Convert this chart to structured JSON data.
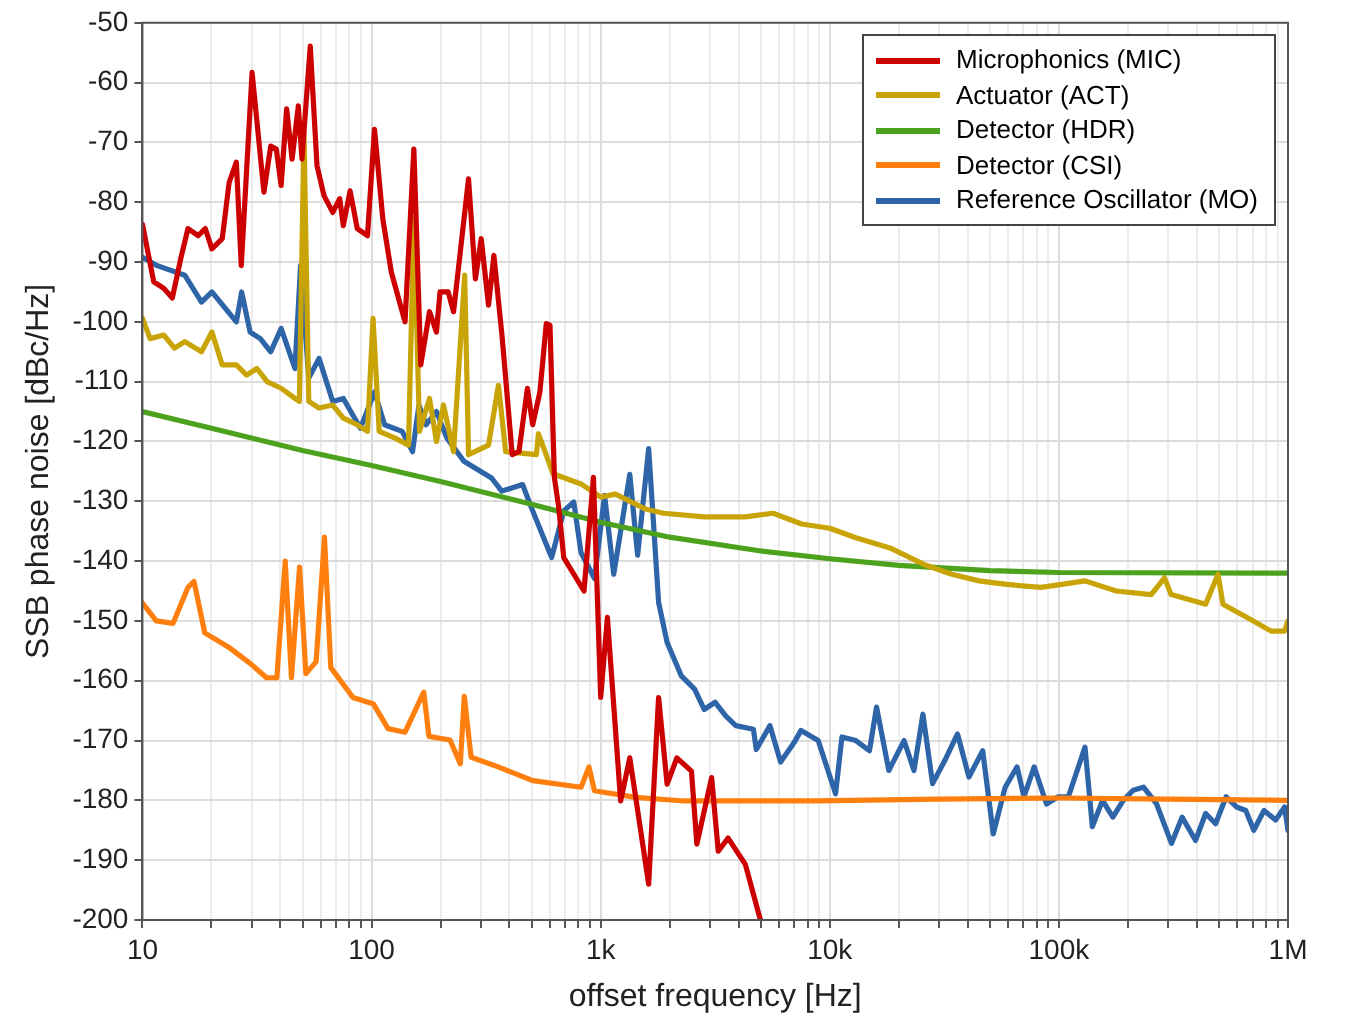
{
  "chart_data": {
    "type": "line",
    "xlabel": "offset frequency [Hz]",
    "ylabel": "SSB phase noise [dBc/Hz]",
    "log": "x",
    "grid": true,
    "legend": "top right",
    "marker": "none",
    "line_style": "solid",
    "xlim": [
      10,
      1000000
    ],
    "ylim": [
      -200,
      -50
    ],
    "xticks": [
      10,
      {
        "value": 20,
        "label": null
      },
      {
        "value": 30,
        "label": null
      },
      {
        "value": 40,
        "label": null
      },
      {
        "value": 50,
        "label": null
      },
      {
        "value": 60,
        "label": null
      },
      {
        "value": 70,
        "label": null
      },
      {
        "value": 80,
        "label": null
      },
      {
        "value": 90,
        "label": null
      },
      100,
      {
        "value": 200,
        "label": null
      },
      {
        "value": 300,
        "label": null
      },
      {
        "value": 400,
        "label": null
      },
      {
        "value": 500,
        "label": null
      },
      {
        "value": 600,
        "label": null
      },
      {
        "value": 700,
        "label": null
      },
      {
        "value": 800,
        "label": null
      },
      {
        "value": 900,
        "label": null
      },
      {
        "value": 1000,
        "label": "1k"
      },
      {
        "value": 2000,
        "label": null
      },
      {
        "value": 3000,
        "label": null
      },
      {
        "value": 4000,
        "label": null
      },
      {
        "value": 5000,
        "label": null
      },
      {
        "value": 6000,
        "label": null
      },
      {
        "value": 7000,
        "label": null
      },
      {
        "value": 8000,
        "label": null
      },
      {
        "value": 9000,
        "label": null
      },
      {
        "value": 10000,
        "label": "10k"
      },
      {
        "value": 20000,
        "label": null
      },
      {
        "value": 30000,
        "label": null
      },
      {
        "value": 40000,
        "label": null
      },
      {
        "value": 50000,
        "label": null
      },
      {
        "value": 60000,
        "label": null
      },
      {
        "value": 70000,
        "label": null
      },
      {
        "value": 80000,
        "label": null
      },
      {
        "value": 90000,
        "label": null
      },
      {
        "value": 100000,
        "label": "100k"
      },
      {
        "value": 200000,
        "label": null
      },
      {
        "value": 300000,
        "label": null
      },
      {
        "value": 400000,
        "label": null
      },
      {
        "value": 500000,
        "label": null
      },
      {
        "value": 600000,
        "label": null
      },
      {
        "value": 700000,
        "label": null
      },
      {
        "value": 800000,
        "label": null
      },
      {
        "value": 900000,
        "label": null
      },
      {
        "value": 1000000,
        "label": "1M"
      }
    ],
    "yticks": [
      -50,
      -60,
      -70,
      -80,
      -90,
      -100,
      -110,
      -120,
      -130,
      -140,
      -150,
      -160,
      -170,
      -180,
      -190,
      -200
    ],
    "series": [
      {
        "name": "Microphonics (MIC)",
        "color": "#cc0000",
        "x": [
          10,
          11.2,
          12.4,
          13.5,
          14.7,
          15.8,
          17.5,
          18.8,
          20.1,
          22.3,
          23.9,
          25.7,
          27,
          30.1,
          33.9,
          36.3,
          38.4,
          40.3,
          42.6,
          45,
          47.9,
          49.7,
          54,
          57.8,
          62,
          67.7,
          72.6,
          75.3,
          80.6,
          86.6,
          96,
          103,
          112,
          122,
          140,
          153,
          164,
          179,
          192,
          199,
          216,
          228,
          265,
          284,
          301,
          324,
          342,
          372,
          411,
          440,
          479,
          505,
          543,
          579,
          601,
          628,
          656,
          690,
          846,
          930,
          1000,
          1070,
          1222,
          1340,
          1620,
          1790,
          1950,
          2150,
          2490,
          2630,
          3050,
          3260,
          3600,
          4280,
          4980
        ],
        "values": [
          -83.7,
          -93.3,
          -94.4,
          -96,
          -89.4,
          -84.4,
          -85.6,
          -84.4,
          -87.8,
          -86.1,
          -76.7,
          -73.3,
          -90.6,
          -58.3,
          -78.3,
          -70.6,
          -71.1,
          -77.2,
          -64.4,
          -72.8,
          -63.9,
          -72.8,
          -53.9,
          -73.9,
          -78.9,
          -81.7,
          -79.4,
          -83.9,
          -78.1,
          -84.4,
          -85.6,
          -67.8,
          -82.8,
          -91.7,
          -100,
          -71.1,
          -107.2,
          -98.3,
          -101.7,
          -95,
          -95,
          -98.3,
          -76.1,
          -92.8,
          -86.1,
          -97.2,
          -88.9,
          -102.8,
          -122.2,
          -121.7,
          -111.1,
          -117.2,
          -111.7,
          -100.3,
          -100.6,
          -126,
          -131,
          -139.4,
          -145,
          -126,
          -162.8,
          -149.4,
          -180.1,
          -172.9,
          -194,
          -162.8,
          -177.3,
          -172.9,
          -175.1,
          -187.3,
          -176.2,
          -188.5,
          -186.3,
          -190.7,
          -200
        ]
      },
      {
        "name": "Actuator (ACT)",
        "color": "#c9a406",
        "x": [
          10,
          10.8,
          12.4,
          13.8,
          15.3,
          18.1,
          20.1,
          22.3,
          25.7,
          28.5,
          31.6,
          35,
          40.3,
          46.3,
          48.4,
          50.7,
          53.2,
          59,
          67.7,
          75.3,
          86.6,
          96,
          101.5,
          108,
          126,
          145,
          153,
          162,
          179,
          192,
          206,
          228,
          255,
          265,
          324,
          358,
          385,
          524,
          535,
          620,
          821,
          1000,
          1160,
          1570,
          1880,
          2830,
          4280,
          5660,
          7540,
          10000,
          13000,
          18300,
          25900,
          34100,
          44800,
          59100,
          83500,
          103000,
          130000,
          178000,
          253000,
          289000,
          309000,
          437000,
          495000,
          520000,
          660000,
          843000,
          966000,
          1000000
        ],
        "values": [
          -99.4,
          -102.8,
          -102.2,
          -104.4,
          -103.3,
          -105,
          -101.7,
          -107.2,
          -107.2,
          -108.9,
          -107.8,
          -110,
          -111.1,
          -112.8,
          -113.3,
          -68.3,
          -113.3,
          -114.4,
          -113.9,
          -116.1,
          -117.2,
          -118.3,
          -99.4,
          -118.3,
          -119.4,
          -120.6,
          -82.8,
          -118.3,
          -112.8,
          -120,
          -113.9,
          -121.7,
          -92.2,
          -122.2,
          -120.6,
          -110.6,
          -121.7,
          -122.2,
          -118.7,
          -125.4,
          -127.1,
          -129.3,
          -128.8,
          -131.3,
          -132,
          -132.6,
          -132.6,
          -132,
          -133.8,
          -134.5,
          -136.1,
          -137.8,
          -140.6,
          -142.2,
          -143.3,
          -143.9,
          -144.4,
          -143.9,
          -143.3,
          -145,
          -145.6,
          -142.8,
          -145.6,
          -147.2,
          -142.2,
          -147.2,
          -149.4,
          -151.7,
          -151.7,
          -150
        ]
      },
      {
        "name": "Detector (HDR)",
        "color": "#4ca21c",
        "x": [
          10,
          20,
          50,
          100,
          200,
          500,
          1000,
          2000,
          5000,
          10000,
          20000,
          50000,
          100000,
          1000000
        ],
        "values": [
          -115,
          -117.8,
          -121.5,
          -124,
          -126.7,
          -130.5,
          -133.5,
          -136,
          -138.3,
          -139.6,
          -140.7,
          -141.6,
          -141.9,
          -142
        ]
      },
      {
        "name": "Detector (CSI)",
        "color": "#ff7f0e",
        "x": [
          10,
          11.5,
          13.6,
          15.8,
          16.8,
          18.7,
          24,
          29.5,
          34.8,
          38.6,
          42,
          44.7,
          48.5,
          51.7,
          57.3,
          62.3,
          66.4,
          83,
          102,
          118,
          140,
          169,
          178,
          220,
          244,
          254,
          272,
          357,
          505,
          821,
          889,
          940,
          1420,
          2320,
          4980,
          8660,
          30000,
          100000,
          300000,
          1000000
        ],
        "values": [
          -147,
          -150,
          -150.4,
          -144.4,
          -143.4,
          -152,
          -154.5,
          -157.1,
          -159.5,
          -159.5,
          -140,
          -159.5,
          -141,
          -158.8,
          -156.8,
          -136,
          -157.8,
          -162.8,
          -163.9,
          -168,
          -168.6,
          -161.9,
          -169.3,
          -169.9,
          -173.9,
          -162.6,
          -172.8,
          -174.4,
          -176.7,
          -177.8,
          -174.4,
          -178.4,
          -179.5,
          -180.1,
          -180.1,
          -180.1,
          -179.8,
          -179.6,
          -179.8,
          -180
        ]
      },
      {
        "name": "Reference Oscillator (MO)",
        "color": "#2e64a8",
        "x": [
          10,
          11.6,
          15.3,
          18.1,
          20.1,
          25.7,
          27.1,
          29.5,
          32.7,
          36.3,
          40.3,
          46.3,
          49,
          53.2,
          59,
          67.7,
          75.3,
          89.4,
          103,
          114,
          136,
          151,
          161,
          173,
          192,
          213,
          253,
          334,
          370,
          456,
          505,
          611,
          690,
          763,
          821,
          940,
          1040,
          1140,
          1340,
          1450,
          1620,
          1790,
          1950,
          2250,
          2570,
          2830,
          3160,
          3520,
          3890,
          4640,
          4780,
          5480,
          6100,
          7000,
          7490,
          8900,
          10600,
          11300,
          13000,
          14900,
          16000,
          18100,
          21100,
          23300,
          25500,
          28100,
          31800,
          36100,
          40500,
          46500,
          51700,
          58300,
          65700,
          70400,
          78000,
          88300,
          99300,
          110000,
          130000,
          140000,
          155000,
          172000,
          191000,
          211000,
          234000,
          267000,
          310000,
          345000,
          395000,
          437000,
          483000,
          537000,
          596000,
          654000,
          709000,
          786000,
          883000,
          966000,
          1000000
        ],
        "values": [
          -89.2,
          -90.6,
          -92.2,
          -96.7,
          -95,
          -100,
          -95,
          -101.7,
          -102.8,
          -105,
          -101.1,
          -107.8,
          -90.6,
          -109.4,
          -106.1,
          -113.3,
          -112.8,
          -117.8,
          -111.7,
          -117.2,
          -118.3,
          -121.7,
          -113.9,
          -117.2,
          -115,
          -119.4,
          -123.3,
          -126.1,
          -128.3,
          -127.2,
          -131.6,
          -139.4,
          -131.6,
          -130.1,
          -138.6,
          -142.9,
          -129,
          -142.2,
          -125.5,
          -139,
          -121.2,
          -146.9,
          -153.6,
          -159.2,
          -161.4,
          -164.8,
          -163.6,
          -165.9,
          -167.5,
          -168.1,
          -171.5,
          -167.5,
          -173.6,
          -170.3,
          -168.3,
          -170,
          -178.9,
          -169.4,
          -170,
          -171.7,
          -164.4,
          -175,
          -170,
          -175,
          -165.6,
          -177.2,
          -173.3,
          -168.9,
          -176.1,
          -171.7,
          -185.6,
          -177.8,
          -174.4,
          -179.4,
          -174.4,
          -180.6,
          -179.4,
          -179.4,
          -171.1,
          -184.4,
          -180,
          -182.8,
          -180,
          -178.3,
          -177.8,
          -180.6,
          -187.2,
          -182.8,
          -186.7,
          -182.2,
          -183.9,
          -179.4,
          -181.1,
          -181.7,
          -185,
          -181.7,
          -183.3,
          -181.1,
          -185
        ]
      }
    ]
  }
}
